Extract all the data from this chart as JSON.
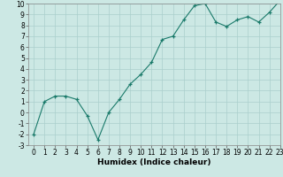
{
  "x": [
    0,
    1,
    2,
    3,
    4,
    5,
    6,
    7,
    8,
    9,
    10,
    11,
    12,
    13,
    14,
    15,
    16,
    17,
    18,
    19,
    20,
    21,
    22,
    23
  ],
  "y": [
    -2.0,
    1.0,
    1.5,
    1.5,
    1.2,
    -0.3,
    -2.5,
    0.0,
    1.2,
    2.6,
    3.5,
    4.6,
    6.7,
    7.0,
    8.5,
    9.8,
    10.0,
    8.3,
    7.9,
    8.5,
    8.8,
    8.3,
    9.2,
    10.3
  ],
  "line_color": "#1a7a6a",
  "marker": "+",
  "bg_color": "#cce8e4",
  "grid_color": "#aacfcc",
  "xlabel": "Humidex (Indice chaleur)",
  "xlabel_fontsize": 6.5,
  "tick_fontsize": 5.5,
  "ylim": [
    -3,
    10
  ],
  "xlim": [
    -0.5,
    23
  ],
  "yticks": [
    -3,
    -2,
    -1,
    0,
    1,
    2,
    3,
    4,
    5,
    6,
    7,
    8,
    9,
    10
  ],
  "xticks": [
    0,
    1,
    2,
    3,
    4,
    5,
    6,
    7,
    8,
    9,
    10,
    11,
    12,
    13,
    14,
    15,
    16,
    17,
    18,
    19,
    20,
    21,
    22,
    23
  ]
}
